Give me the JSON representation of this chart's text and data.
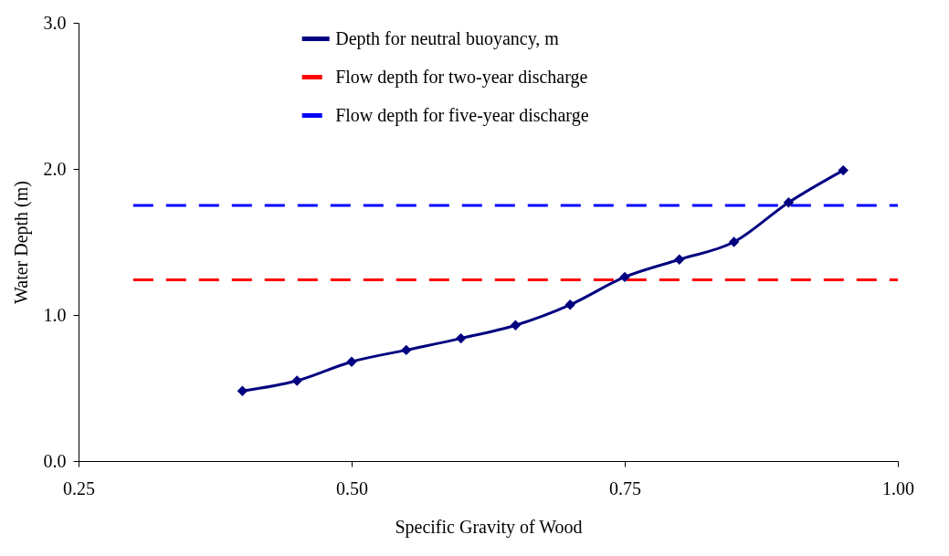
{
  "chart_data": {
    "type": "line",
    "xlabel": "Specific Gravity of Wood",
    "ylabel": "Water Depth (m)",
    "xlim": [
      0.25,
      1.0
    ],
    "ylim": [
      0,
      3.0
    ],
    "xticks": [
      {
        "value": 0.25,
        "label": "0.25"
      },
      {
        "value": 0.5,
        "label": "0.50"
      },
      {
        "value": 0.75,
        "label": "0.75"
      },
      {
        "value": 1.0,
        "label": "1.00"
      }
    ],
    "yticks": [
      {
        "value": 0,
        "label": "0.0"
      },
      {
        "value": 1,
        "label": "1.0"
      },
      {
        "value": 2,
        "label": "2.0"
      },
      {
        "value": 3,
        "label": "3.0"
      }
    ],
    "grid": false,
    "legend": "top",
    "series": [
      {
        "name": "Depth for neutral buoyancy, m",
        "color": "#000080",
        "marker": "diamond",
        "line_style": "solid",
        "x": [
          0.4,
          0.45,
          0.5,
          0.55,
          0.6,
          0.65,
          0.7,
          0.75,
          0.8,
          0.85,
          0.9,
          0.95
        ],
        "values": [
          0.48,
          0.55,
          0.68,
          0.76,
          0.84,
          0.93,
          1.07,
          1.26,
          1.38,
          1.5,
          1.77,
          1.99
        ]
      },
      {
        "name": "Flow depth for two-year discharge",
        "color": "#ff0000",
        "marker": "none",
        "line_style": "dashed",
        "x": [
          0.3,
          1.0
        ],
        "values": [
          1.24,
          1.24
        ]
      },
      {
        "name": "Flow depth for five-year discharge",
        "color": "#0000ff",
        "marker": "none",
        "line_style": "dashed",
        "x": [
          0.3,
          1.0
        ],
        "values": [
          1.75,
          1.75
        ]
      }
    ]
  }
}
